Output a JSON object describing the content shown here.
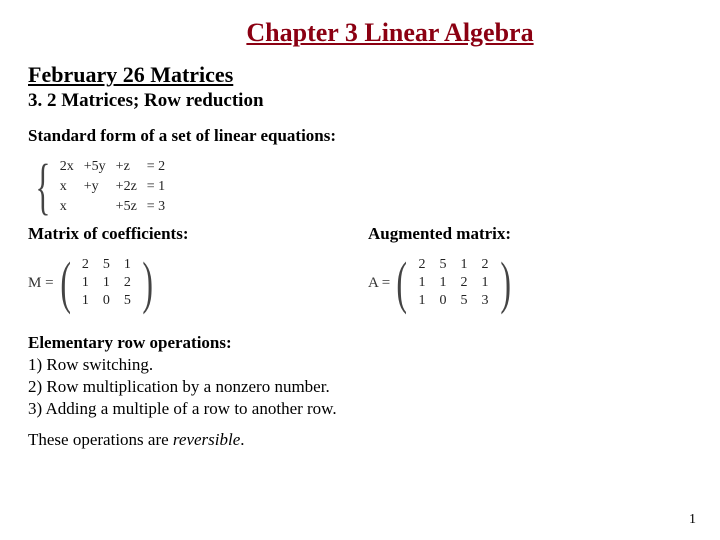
{
  "chapter_title": "Chapter 3 Linear Algebra",
  "subtitle": "February 26 Matrices",
  "section_title": "3. 2 Matrices; Row reduction",
  "standard_form_label": "Standard form of a set of linear equations:",
  "equations": {
    "rows": [
      [
        "2x",
        "+5y",
        "+z",
        "= 2"
      ],
      [
        "x",
        "+y",
        "+2z",
        "= 1"
      ],
      [
        "x",
        "",
        "+5z",
        "= 3"
      ]
    ]
  },
  "coeff_label": "Matrix of coefficients:",
  "aug_label": "Augmented matrix:",
  "M_prefix": "M =",
  "A_prefix": "A =",
  "M": {
    "rows": [
      [
        "2",
        "5",
        "1"
      ],
      [
        "1",
        "1",
        "2"
      ],
      [
        "1",
        "0",
        "5"
      ]
    ]
  },
  "A": {
    "rows": [
      [
        "2",
        "5",
        "1",
        "2"
      ],
      [
        "1",
        "1",
        "2",
        "1"
      ],
      [
        "1",
        "0",
        "5",
        "3"
      ]
    ]
  },
  "ops_heading": "Elementary row operations:",
  "ops": [
    "1)  Row switching.",
    "2)  Row multiplication by a nonzero number.",
    "3)  Adding a multiple of a row to another row."
  ],
  "reversible_prefix": "These operations are ",
  "reversible_word": "reversible",
  "reversible_suffix": ".",
  "page_number": "1",
  "colors": {
    "title_color": "#8b0012",
    "text_color": "#000000",
    "background": "#ffffff"
  }
}
